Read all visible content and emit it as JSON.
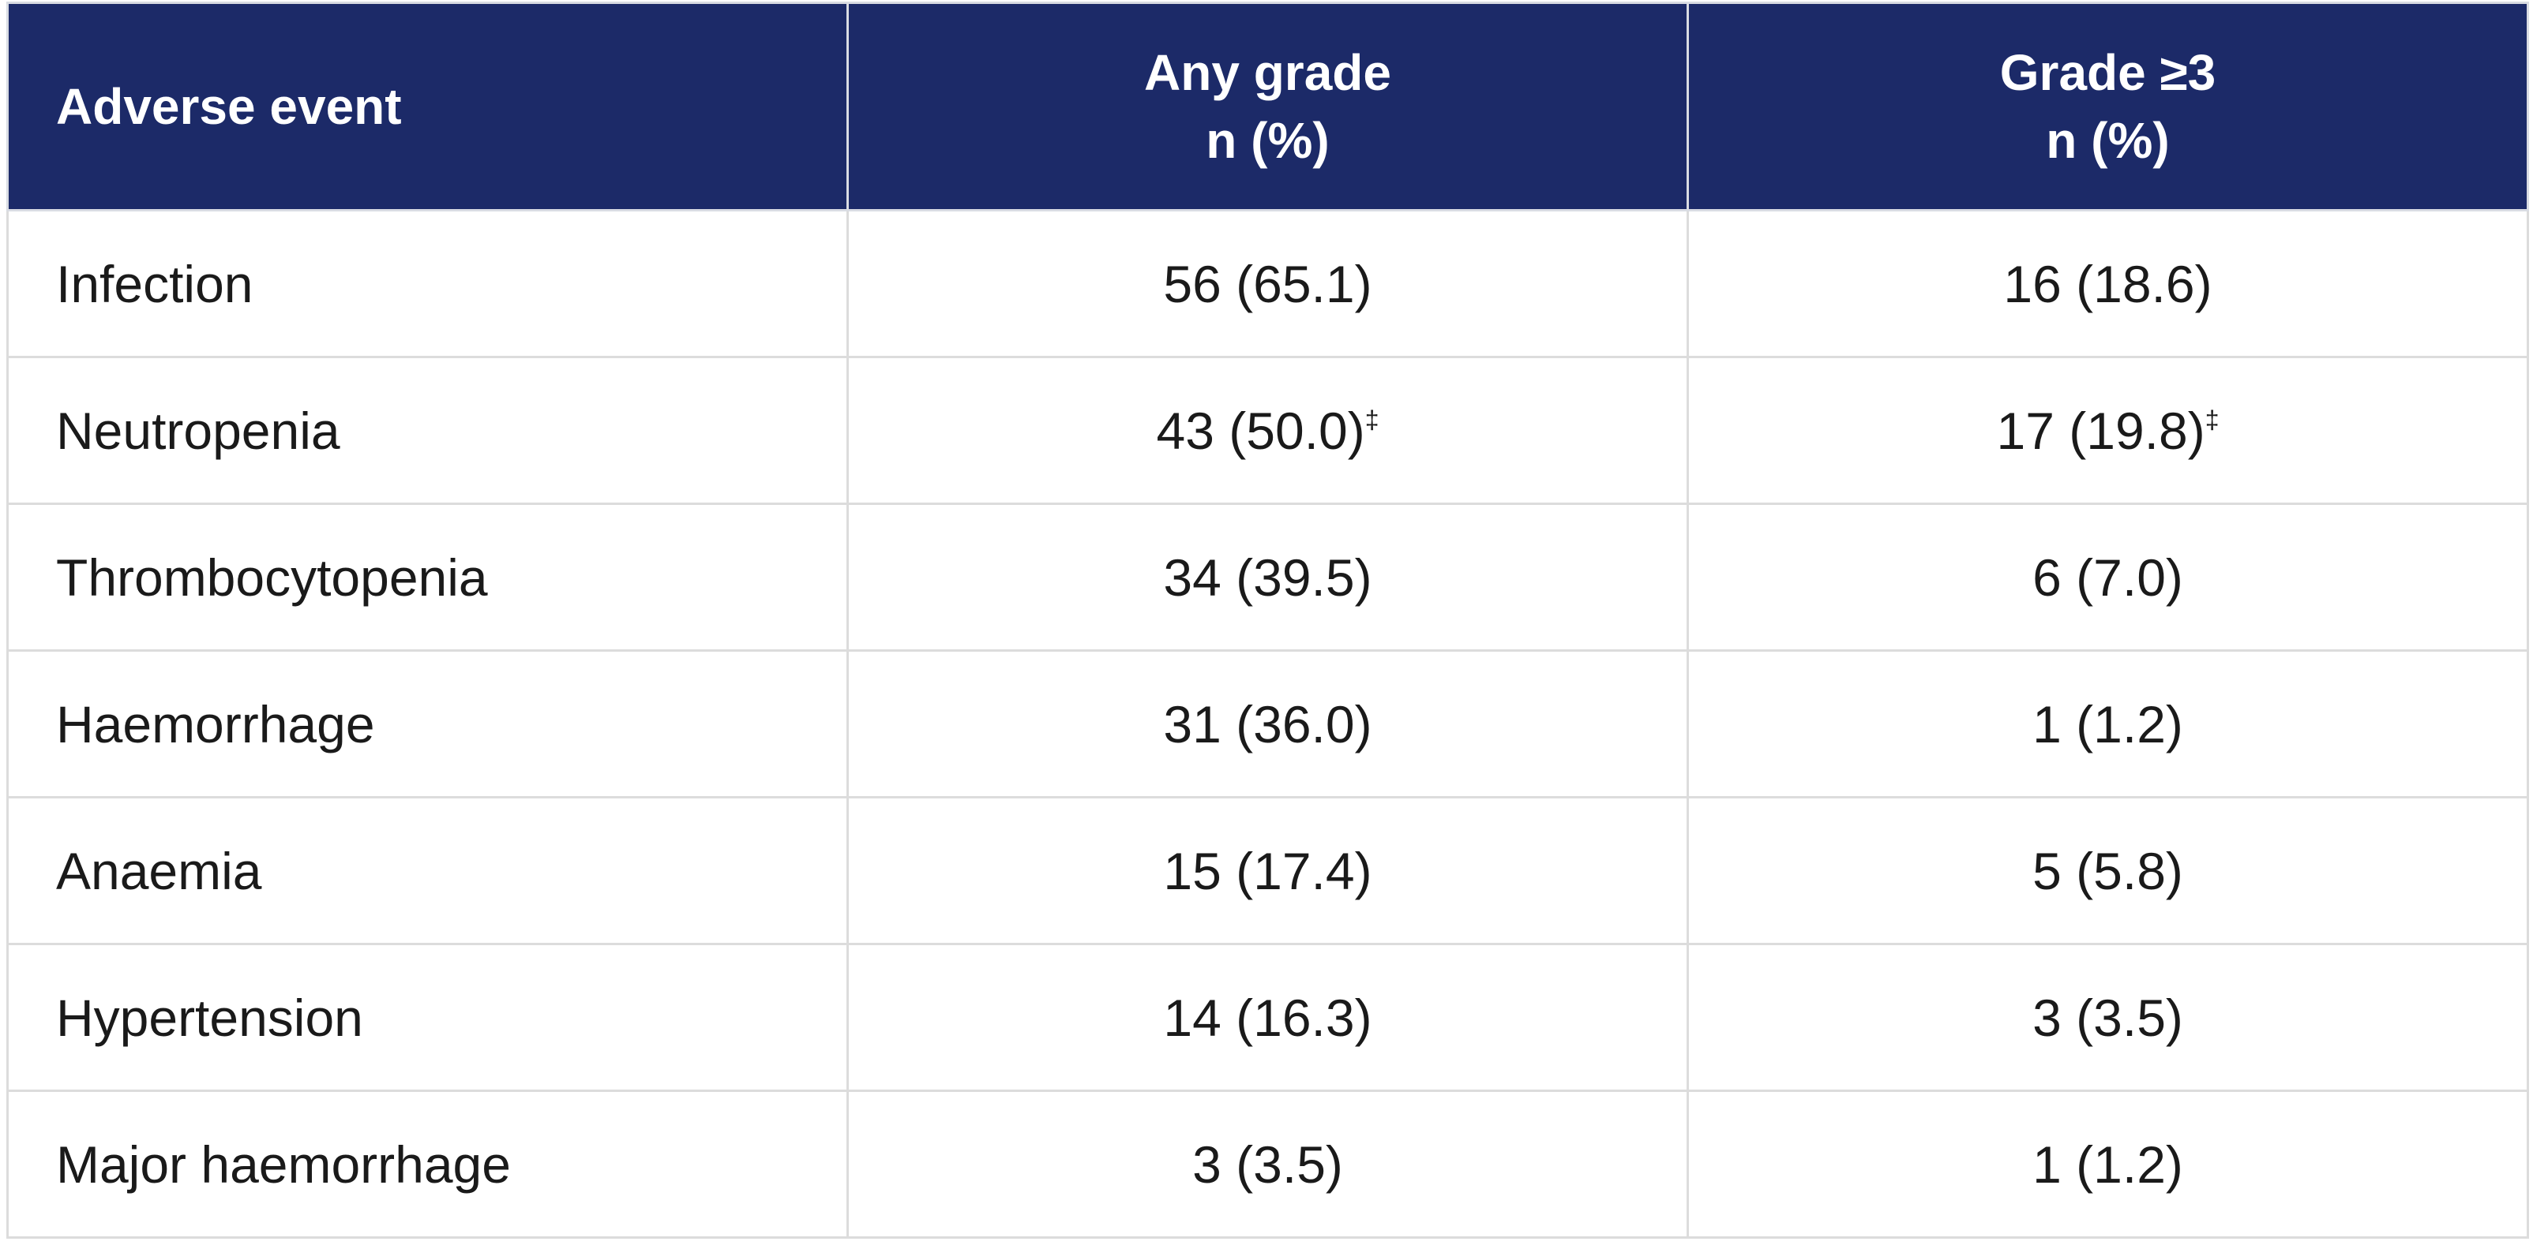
{
  "table": {
    "header": [
      "Adverse event",
      [
        "Any grade",
        "n (%)"
      ],
      [
        "Grade ≥3",
        "n (%)"
      ]
    ],
    "rows": [
      [
        "Infection",
        "56 (65.1)",
        "16 (18.6)"
      ],
      [
        "Neutropenia",
        {
          "text": "43 (50.0)",
          "sup": "‡"
        },
        {
          "text": "17 (19.8)",
          "sup": "‡"
        }
      ],
      [
        "Thrombocytopenia",
        "34 (39.5)",
        "6 (7.0)"
      ],
      [
        "Haemorrhage",
        "31 (36.0)",
        "1 (1.2)"
      ],
      [
        "Anaemia",
        "15 (17.4)",
        "5 (5.8)"
      ],
      [
        "Hypertension",
        "14 (16.3)",
        "3 (3.5)"
      ],
      [
        "Major haemorrhage",
        "3 (3.5)",
        "1 (1.2)"
      ]
    ]
  }
}
